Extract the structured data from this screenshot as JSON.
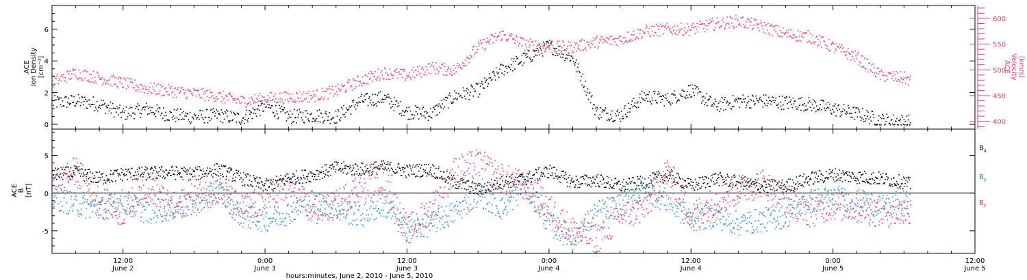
{
  "chart_data": [
    {
      "type": "scatter",
      "panel": "top",
      "ylabel": [
        "ACE",
        "Ion Density",
        "[cm⁻³]"
      ],
      "ylim": [
        -0.3,
        7.5
      ],
      "yticks": [
        0,
        2,
        4,
        6
      ],
      "ylabel_right": [
        "ACE",
        "Velocity",
        "[km/s]"
      ],
      "ylim_right": [
        385,
        625
      ],
      "yticks_right": [
        400,
        450,
        500,
        550,
        600
      ],
      "x_range_hours": [
        -6,
        72
      ],
      "series": [
        {
          "axis": "left",
          "color": "#000000",
          "x": [
            -6,
            -4,
            -2,
            0,
            2,
            4,
            6,
            8,
            10,
            12,
            14,
            16,
            18,
            20,
            22,
            24,
            26,
            28,
            30,
            32,
            34,
            36,
            38,
            40,
            42,
            44,
            46,
            48,
            50,
            52,
            54,
            56,
            58,
            60,
            62,
            64,
            66,
            66.5
          ],
          "y": [
            1.4,
            1.5,
            1.3,
            0.7,
            1.0,
            0.6,
            0.5,
            0.6,
            0.4,
            1.2,
            0.5,
            0.6,
            0.5,
            1.5,
            1.7,
            0.8,
            0.7,
            1.8,
            2.2,
            3.5,
            4.2,
            5.0,
            4.2,
            0.8,
            0.6,
            1.8,
            1.6,
            2.2,
            1.2,
            1.5,
            1.5,
            1.4,
            1.3,
            1.0,
            0.7,
            0.3,
            0.2,
            0.2
          ]
        },
        {
          "axis": "right",
          "color": "#e8386b",
          "x": [
            -6,
            -4,
            -2,
            0,
            2,
            4,
            6,
            8,
            10,
            12,
            14,
            16,
            18,
            20,
            22,
            24,
            26,
            28,
            30,
            32,
            34,
            36,
            38,
            40,
            42,
            44,
            46,
            48,
            50,
            52,
            54,
            56,
            58,
            60,
            62,
            64,
            66,
            66.5
          ],
          "y": [
            478,
            495,
            485,
            475,
            465,
            460,
            455,
            450,
            440,
            445,
            448,
            450,
            460,
            480,
            495,
            490,
            505,
            500,
            545,
            570,
            550,
            545,
            545,
            555,
            560,
            575,
            580,
            580,
            590,
            595,
            585,
            570,
            565,
            545,
            525,
            490,
            485,
            480
          ]
        }
      ]
    },
    {
      "type": "scatter",
      "panel": "bottom",
      "ylabel": [
        "ACE",
        "B",
        "[nT]"
      ],
      "ylim": [
        -8,
        8.5
      ],
      "yticks": [
        -5,
        0,
        5
      ],
      "x_range_hours": [
        -6,
        72
      ],
      "xticks": [
        {
          "hour": 0,
          "time": "12:00",
          "date": "June 2"
        },
        {
          "hour": 12,
          "time": "0:00",
          "date": "June 3"
        },
        {
          "hour": 24,
          "time": "12:00",
          "date": "June 3"
        },
        {
          "hour": 36,
          "time": "0:00",
          "date": "June 4"
        },
        {
          "hour": 48,
          "time": "12:00",
          "date": "June 4"
        },
        {
          "hour": 60,
          "time": "0:00",
          "date": "June 5"
        },
        {
          "hour": 72,
          "time": "12:00",
          "date": "June 5"
        }
      ],
      "xlabel": "hours:minutes, June  2, 2010 - June  5, 2010",
      "series": [
        {
          "name": "B",
          "subscript": "x",
          "color": "#000000",
          "x": [
            -6,
            -4,
            -2,
            0,
            2,
            4,
            6,
            8,
            10,
            12,
            14,
            16,
            18,
            20,
            22,
            24,
            26,
            28,
            30,
            32,
            34,
            36,
            38,
            40,
            42,
            44,
            46,
            48,
            50,
            52,
            54,
            56,
            58,
            60,
            62,
            64,
            66,
            66.5
          ],
          "y": [
            2.5,
            2.8,
            2.0,
            2.6,
            2.7,
            2.8,
            2.6,
            3.2,
            2.0,
            1.0,
            2.0,
            2.5,
            3.4,
            3.2,
            3.5,
            3.0,
            3.2,
            1.5,
            0.5,
            1.5,
            2.0,
            3.0,
            1.5,
            1.8,
            1.0,
            1.5,
            2.5,
            1.0,
            2.0,
            1.5,
            1.0,
            1.0,
            2.0,
            2.5,
            2.2,
            2.0,
            1.5,
            1.2
          ]
        },
        {
          "name": "B",
          "subscript": "y",
          "color": "#2a86e0",
          "x": [
            -6,
            -4,
            -2,
            0,
            2,
            4,
            6,
            8,
            10,
            12,
            14,
            16,
            18,
            20,
            22,
            24,
            26,
            28,
            30,
            32,
            34,
            36,
            38,
            40,
            42,
            44,
            46,
            48,
            50,
            52,
            54,
            56,
            58,
            60,
            62,
            64,
            66,
            66.5
          ],
          "y": [
            -0.5,
            -1.5,
            -2.0,
            -1.0,
            -2.5,
            -2.0,
            -1.5,
            0.5,
            -3.0,
            -3.5,
            -2.5,
            -1.0,
            -2.0,
            -3.0,
            -1.5,
            -5.0,
            -4.0,
            -2.5,
            0.0,
            -2.0,
            1.0,
            -4.0,
            -6.0,
            -2.5,
            -1.5,
            0.5,
            -1.0,
            -3.5,
            -3.0,
            -4.0,
            -3.5,
            -3.0,
            -1.0,
            -0.5,
            -1.0,
            -1.5,
            -1.2,
            -1.5
          ]
        },
        {
          "name": "B",
          "subscript": "z",
          "color": "#e8386b",
          "x": [
            -6,
            -4,
            -2,
            0,
            2,
            4,
            6,
            8,
            10,
            12,
            14,
            16,
            18,
            20,
            22,
            24,
            26,
            28,
            30,
            32,
            34,
            36,
            38,
            40,
            42,
            44,
            46,
            48,
            50,
            52,
            54,
            56,
            58,
            60,
            62,
            64,
            66,
            66.5
          ],
          "y": [
            1.0,
            3.0,
            -1.0,
            -2.5,
            1.5,
            -2.0,
            -0.5,
            0.5,
            -2.0,
            -1.0,
            1.0,
            -2.5,
            -1.5,
            1.0,
            2.0,
            -5.0,
            -2.0,
            3.0,
            4.0,
            2.0,
            1.0,
            -2.0,
            -5.0,
            -6.0,
            -3.0,
            -2.0,
            3.0,
            -3.0,
            -1.0,
            0.5,
            1.5,
            -1.0,
            -2.5,
            -1.5,
            -2.0,
            -2.5,
            -2.5,
            -2.0
          ]
        }
      ]
    }
  ]
}
